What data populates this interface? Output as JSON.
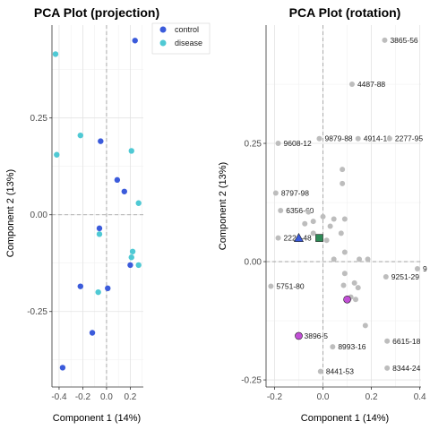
{
  "colors": {
    "control": "#3b5bdb",
    "disease": "#4fc9d4",
    "gene": "#bdbdbd",
    "marker_blue": "#3b5bdb",
    "marker_green": "#2e8b57",
    "marker_magenta": "#c24fd6"
  },
  "legend": {
    "items": [
      {
        "label": "control",
        "color": "#3b5bdb"
      },
      {
        "label": "disease",
        "color": "#4fc9d4"
      }
    ]
  },
  "chart_data": [
    {
      "type": "scatter",
      "title": "PCA Plot (projection)",
      "xlabel": "Component 1 (14%)",
      "ylabel": "Component 2 (13%)",
      "xlim": [
        -0.46,
        0.31
      ],
      "ylim": [
        -0.445,
        0.49
      ],
      "xticks": [
        {
          "v": -0.4,
          "label": "-0.4"
        },
        {
          "v": -0.2,
          "label": "-0.2"
        },
        {
          "v": 0.0,
          "label": "0.0"
        },
        {
          "v": 0.2,
          "label": "0.2"
        }
      ],
      "yticks": [
        {
          "v": -0.25,
          "label": "-0.25"
        },
        {
          "v": 0.0,
          "label": "0.00"
        },
        {
          "v": 0.25,
          "label": "0.25"
        }
      ],
      "grid": true,
      "legend_position": "top-right",
      "series": [
        {
          "name": "control",
          "color": "#3b5bdb",
          "points": [
            [
              0.24,
              0.45
            ],
            [
              -0.05,
              0.19
            ],
            [
              0.09,
              0.09
            ],
            [
              0.15,
              0.06
            ],
            [
              -0.06,
              -0.035
            ],
            [
              0.2,
              -0.13
            ],
            [
              0.01,
              -0.19
            ],
            [
              -0.22,
              -0.185
            ],
            [
              -0.12,
              -0.305
            ],
            [
              -0.37,
              -0.395
            ]
          ]
        },
        {
          "name": "disease",
          "color": "#4fc9d4",
          "points": [
            [
              -0.43,
              0.415
            ],
            [
              -0.22,
              0.205
            ],
            [
              0.21,
              0.165
            ],
            [
              -0.42,
              0.155
            ],
            [
              0.27,
              0.03
            ],
            [
              -0.06,
              -0.05
            ],
            [
              0.22,
              -0.095
            ],
            [
              0.21,
              -0.11
            ],
            [
              0.27,
              -0.13
            ],
            [
              -0.07,
              -0.2
            ]
          ]
        }
      ]
    },
    {
      "type": "scatter",
      "title": "PCA Plot (rotation)",
      "xlabel": "Component 1 (14%)",
      "ylabel": "Component 2 (13%)",
      "xlim": [
        -0.235,
        0.405
      ],
      "ylim": [
        -0.265,
        0.5
      ],
      "xticks": [
        {
          "v": -0.2,
          "label": "-0.2"
        },
        {
          "v": 0.0,
          "label": "0.0"
        },
        {
          "v": 0.2,
          "label": "0.2"
        },
        {
          "v": 0.4,
          "label": "0.4"
        }
      ],
      "yticks": [
        {
          "v": -0.25,
          "label": "-0.25"
        },
        {
          "v": 0.0,
          "label": "0.00"
        },
        {
          "v": 0.25,
          "label": "0.25"
        }
      ],
      "grid": true,
      "genes": [
        {
          "x": 0.255,
          "y": 0.468,
          "label": "3865-56"
        },
        {
          "x": 0.12,
          "y": 0.375,
          "label": "4487-88"
        },
        {
          "x": -0.015,
          "y": 0.26,
          "label": "9879-88"
        },
        {
          "x": 0.145,
          "y": 0.26,
          "label": "4914-10"
        },
        {
          "x": 0.275,
          "y": 0.26,
          "label": "2277-95"
        },
        {
          "x": -0.185,
          "y": 0.25,
          "label": "9608-12"
        },
        {
          "x": -0.195,
          "y": 0.145,
          "label": "8797-98"
        },
        {
          "x": -0.175,
          "y": 0.108,
          "label": "6356-60"
        },
        {
          "x": -0.185,
          "y": 0.05,
          "label": "2224-48"
        },
        {
          "x": -0.215,
          "y": -0.052,
          "label": "5751-80"
        },
        {
          "x": 0.26,
          "y": -0.032,
          "label": "9251-29"
        },
        {
          "x": 0.39,
          "y": -0.015,
          "label": "9"
        },
        {
          "x": 0.265,
          "y": -0.168,
          "label": "6615-18"
        },
        {
          "x": 0.265,
          "y": -0.225,
          "label": "8344-24"
        },
        {
          "x": 0.04,
          "y": -0.18,
          "label": "8993-16"
        },
        {
          "x": -0.01,
          "y": -0.232,
          "label": "8441-53"
        },
        {
          "x": 0.08,
          "y": 0.195,
          "label": ""
        },
        {
          "x": 0.08,
          "y": 0.165,
          "label": ""
        },
        {
          "x": -0.06,
          "y": 0.105,
          "label": ""
        },
        {
          "x": 0.0,
          "y": 0.095,
          "label": ""
        },
        {
          "x": 0.045,
          "y": 0.09,
          "label": ""
        },
        {
          "x": 0.09,
          "y": 0.09,
          "label": ""
        },
        {
          "x": -0.04,
          "y": 0.085,
          "label": ""
        },
        {
          "x": -0.075,
          "y": 0.08,
          "label": ""
        },
        {
          "x": 0.03,
          "y": 0.075,
          "label": ""
        },
        {
          "x": -0.04,
          "y": 0.06,
          "label": ""
        },
        {
          "x": 0.075,
          "y": 0.06,
          "label": ""
        },
        {
          "x": 0.015,
          "y": 0.045,
          "label": ""
        },
        {
          "x": 0.09,
          "y": 0.02,
          "label": ""
        },
        {
          "x": 0.045,
          "y": 0.005,
          "label": ""
        },
        {
          "x": 0.15,
          "y": 0.005,
          "label": ""
        },
        {
          "x": 0.185,
          "y": 0.005,
          "label": ""
        },
        {
          "x": 0.09,
          "y": -0.025,
          "label": ""
        },
        {
          "x": 0.13,
          "y": -0.045,
          "label": ""
        },
        {
          "x": 0.085,
          "y": -0.05,
          "label": ""
        },
        {
          "x": 0.145,
          "y": -0.055,
          "label": ""
        },
        {
          "x": 0.115,
          "y": -0.075,
          "label": ""
        },
        {
          "x": 0.135,
          "y": -0.08,
          "label": ""
        },
        {
          "x": 0.175,
          "y": -0.135,
          "label": ""
        }
      ],
      "markers": [
        {
          "x": -0.1,
          "y": 0.05,
          "shape": "triangle",
          "color": "#3b5bdb"
        },
        {
          "x": -0.015,
          "y": 0.05,
          "shape": "square",
          "color": "#2e8b57"
        },
        {
          "x": 0.1,
          "y": -0.08,
          "shape": "circle",
          "color": "#c24fd6"
        },
        {
          "x": -0.1,
          "y": -0.157,
          "shape": "circle",
          "color": "#c24fd6",
          "label": "3896-5"
        }
      ]
    }
  ]
}
